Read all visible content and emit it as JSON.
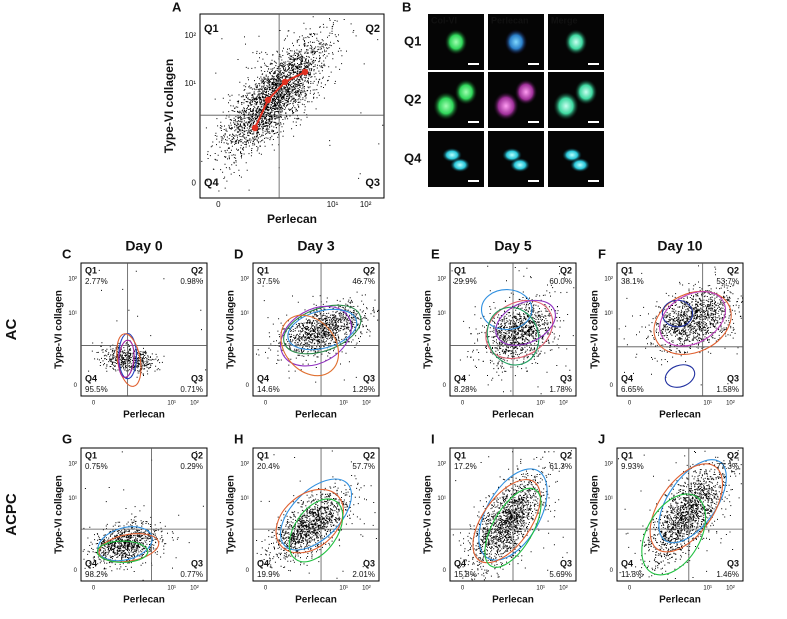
{
  "panel_a": {
    "letter": "A",
    "y_label": "Type-VI collagen",
    "x_label": "Perlecan",
    "y_ticks": [
      "10²",
      "10¹",
      "0"
    ],
    "x_ticks": [
      "0",
      "10¹",
      "10²"
    ],
    "quadrants": [
      "Q1",
      "Q2",
      "Q3",
      "Q4"
    ]
  },
  "panel_b": {
    "letter": "B",
    "channels": [
      "Col-VI",
      "Perlecan",
      "Merge"
    ],
    "rows": [
      "Q1",
      "Q2",
      "Q4"
    ]
  },
  "conditions": [
    "AC",
    "ACPC"
  ],
  "days": [
    "Day 0",
    "Day 3",
    "Day 5",
    "Day 10"
  ],
  "panels": [
    {
      "letter": "C",
      "q1": "2.77%",
      "q2": "0.98%",
      "q3": "0.71%",
      "q4": "95.5%"
    },
    {
      "letter": "D",
      "q1": "37.5%",
      "q2": "46.7%",
      "q3": "1.29%",
      "q4": "14.6%"
    },
    {
      "letter": "E",
      "q1": "29.9%",
      "q2": "60.0%",
      "q3": "1.78%",
      "q4": "8.28%"
    },
    {
      "letter": "F",
      "q1": "38.1%",
      "q2": "53.7%",
      "q3": "1.58%",
      "q4": "6.65%"
    },
    {
      "letter": "G",
      "q1": "0.75%",
      "q2": "0.29%",
      "q3": "0.77%",
      "q4": "98.2%"
    },
    {
      "letter": "H",
      "q1": "20.4%",
      "q2": "57.7%",
      "q3": "2.01%",
      "q4": "19.9%"
    },
    {
      "letter": "I",
      "q1": "17.2%",
      "q2": "61.3%",
      "q3": "5.69%",
      "q4": "15.8%"
    },
    {
      "letter": "J",
      "q1": "9.93%",
      "q2": "77.3%",
      "q3": "1.46%",
      "q4": "11.3%"
    }
  ]
}
